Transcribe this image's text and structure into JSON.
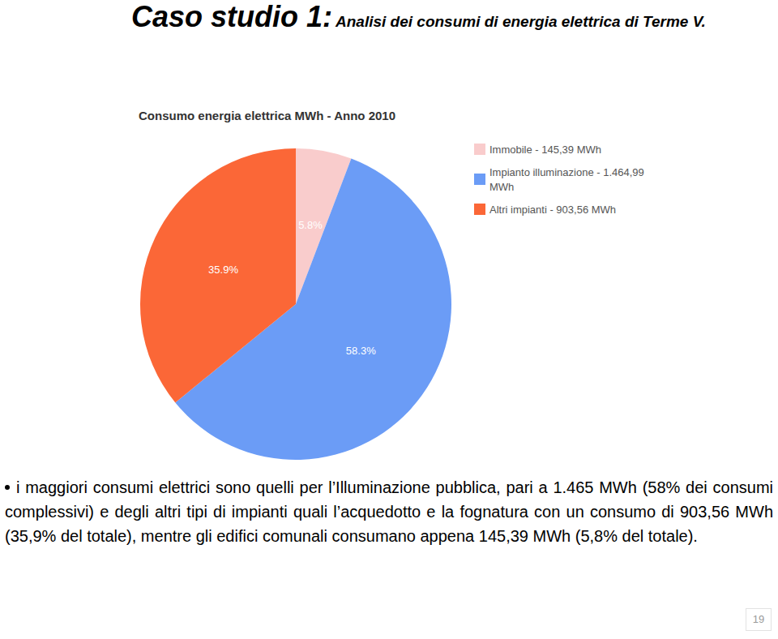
{
  "page": {
    "title": "Caso studio 1:",
    "subtitle": "Analisi dei consumi di energia elettrica di Terme V.",
    "bullets": [
      "i maggiori consumi elettrici sono quelli per l’Illuminazione pubblica, pari a 1.465 MWh (58% dei consumi complessivi) e degli altri tipi di impianti quali l’acquedotto e la fognatura con un consumo di 903,56 MWh (35,9% del totale), mentre gli edifici comunali consumano appena 145,39 MWh (5,8% del totale)."
    ],
    "page_number": "19"
  },
  "chart_data": {
    "type": "pie",
    "title": "Consumo energia elettrica MWh - Anno 2010",
    "categories": [
      "Immobile - 145,39 MWh",
      "Impianto illuminazione - 1.464,99 MWh",
      "Altri impianti - 903,56 MWh"
    ],
    "values": [
      5.8,
      58.3,
      35.9
    ],
    "value_labels": [
      "5.8%",
      "58.3%",
      "35.9%"
    ],
    "colors": [
      "#f9cccc",
      "#6b9cf6",
      "#fb6737"
    ],
    "data_labels": true,
    "legend": "top-right"
  }
}
